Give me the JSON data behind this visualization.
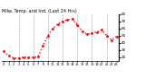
{
  "title": "Milw. Temp. and Ind. (Last 24 Hrs)",
  "title_fontsize": 3.5,
  "background_color": "#ffffff",
  "plot_bg_color": "#ffffff",
  "grid_color": "#999999",
  "line_color": "#ff0000",
  "line_style": "dotted",
  "line_width": 1.0,
  "marker": ".",
  "marker_size": 2.0,
  "x_values": [
    0,
    1,
    2,
    3,
    4,
    5,
    6,
    7,
    8,
    9,
    10,
    11,
    12,
    13,
    14,
    15,
    16,
    17,
    18,
    19,
    20,
    21,
    22,
    23
  ],
  "y_values": [
    28,
    22,
    19,
    19,
    20,
    20,
    20,
    21,
    36,
    50,
    60,
    66,
    70,
    72,
    73,
    65,
    56,
    52,
    54,
    55,
    58,
    50,
    44,
    49
  ],
  "ylim": [
    15,
    80
  ],
  "xlim": [
    -0.5,
    23.5
  ],
  "yticks": [
    20,
    30,
    40,
    50,
    60,
    70,
    80
  ],
  "ytick_fontsize": 3.0,
  "xtick_fontsize": 2.5,
  "xlabel_labels": [
    "0",
    "1",
    "2",
    "3",
    "4",
    "5",
    "6",
    "7",
    "8",
    "9",
    "10",
    "11",
    "12",
    "13",
    "14",
    "15",
    "16",
    "17",
    "18",
    "19",
    "20",
    "21",
    "22",
    "23"
  ],
  "vgrid_positions": [
    3,
    6,
    9,
    12,
    15,
    18,
    21
  ]
}
